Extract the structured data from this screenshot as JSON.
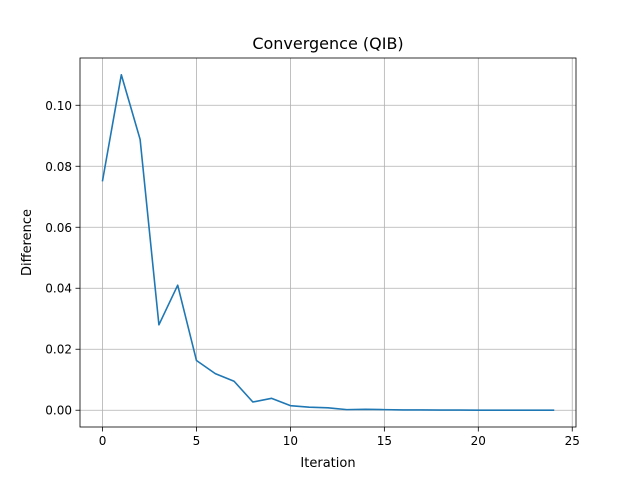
{
  "chart_data": {
    "type": "line",
    "title": "Convergence (QIB)",
    "xlabel": "Iteration",
    "ylabel": "Difference",
    "grid": true,
    "xlim": [
      -1.2,
      25.2
    ],
    "ylim": [
      -0.0055,
      0.1155
    ],
    "x_ticks": [
      0,
      5,
      10,
      15,
      20,
      25
    ],
    "x_tick_labels": [
      "0",
      "5",
      "10",
      "15",
      "20",
      "25"
    ],
    "y_ticks": [
      0.0,
      0.02,
      0.04,
      0.06,
      0.08,
      0.1
    ],
    "y_tick_labels": [
      "0.00",
      "0.02",
      "0.04",
      "0.06",
      "0.08",
      "0.10"
    ],
    "series": [
      {
        "name": "Difference",
        "color": "#1f77b4",
        "x": [
          0,
          1,
          2,
          3,
          4,
          5,
          6,
          7,
          8,
          9,
          10,
          11,
          12,
          13,
          14,
          15,
          16,
          17,
          18,
          19,
          20,
          21,
          22,
          23,
          24
        ],
        "y": [
          0.0753,
          0.11,
          0.0888,
          0.028,
          0.041,
          0.0163,
          0.012,
          0.0095,
          0.0027,
          0.0039,
          0.0015,
          0.001,
          0.0008,
          0.0002,
          0.0003,
          0.0002,
          0.0001,
          0.0001,
          5e-05,
          4e-05,
          3e-05,
          2e-05,
          1e-05,
          1e-05,
          1e-05
        ]
      }
    ]
  }
}
